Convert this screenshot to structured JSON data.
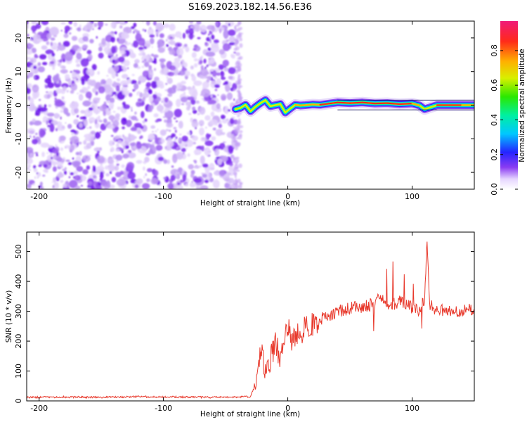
{
  "title": "S169.2023.182.14.56.E36",
  "colors": {
    "snr_line": "#e8392c",
    "noise": "#9a5cf0",
    "trace_edge": "#2020ff",
    "trace_core": "#e82020"
  },
  "colorbar": {
    "label": "Normalized spectral amplitude",
    "ticks": [
      "0.0",
      "0.2",
      "0.4",
      "0.6",
      "0.8"
    ],
    "tick_values": [
      0.0,
      0.2,
      0.4,
      0.6,
      0.8
    ],
    "range": [
      0,
      0.97
    ]
  },
  "chart_data": [
    {
      "type": "heatmap",
      "title": "S169.2023.182.14.56.E36",
      "xlabel": "Height of straight line (km)",
      "ylabel": "Frequency (Hz)",
      "xlim": [
        -210,
        150
      ],
      "ylim": [
        -25,
        25
      ],
      "xticks": [
        -200,
        -100,
        0,
        100
      ],
      "xtick_labels": [
        "-200",
        "-100",
        "0",
        "100"
      ],
      "yticks": [
        -20,
        -10,
        0,
        10,
        20
      ],
      "ytick_labels": [
        "-20",
        "-10",
        "0",
        "10",
        "20"
      ],
      "noise_region_x": [
        -210,
        -42
      ],
      "trace": {
        "x": [
          -42,
          -38,
          -34,
          -30,
          -26,
          -22,
          -18,
          -14,
          -10,
          -6,
          -2,
          2,
          6,
          10,
          14,
          20,
          26,
          32,
          40,
          50,
          60,
          70,
          80,
          90,
          100,
          106,
          110,
          120,
          130,
          140,
          150
        ],
        "freq": [
          -1.2,
          -0.8,
          0.1,
          -1.8,
          -0.5,
          0.6,
          1.5,
          -0.3,
          0.0,
          0.3,
          -2.2,
          -1.0,
          0.1,
          -0.1,
          0.0,
          0.2,
          0.1,
          0.4,
          0.8,
          0.6,
          0.8,
          0.5,
          0.6,
          0.3,
          0.5,
          -0.1,
          -1.2,
          0.0,
          0.0,
          0.0,
          0.0
        ],
        "amplitude": [
          0.35,
          0.5,
          0.6,
          0.55,
          0.6,
          0.6,
          0.55,
          0.6,
          0.65,
          0.7,
          0.65,
          0.7,
          0.75,
          0.8,
          0.8,
          0.85,
          0.8,
          0.9,
          0.95,
          0.9,
          0.9,
          0.85,
          0.9,
          0.9,
          0.85,
          0.7,
          0.5,
          0.95,
          0.9,
          0.85,
          0.8
        ]
      }
    },
    {
      "type": "line",
      "xlabel": "Height of straight line (km)",
      "ylabel": "SNR (10 * v/v)",
      "xlim": [
        -210,
        150
      ],
      "ylim": [
        0,
        565
      ],
      "xticks": [
        -200,
        -100,
        0,
        100
      ],
      "xtick_labels": [
        "-200",
        "-100",
        "0",
        "100"
      ],
      "yticks": [
        0,
        100,
        200,
        300,
        400,
        500
      ],
      "ytick_labels": [
        "0",
        "100",
        "200",
        "300",
        "400",
        "500"
      ],
      "series": [
        {
          "x": [
            -210,
            -180,
            -150,
            -120,
            -90,
            -60,
            -30,
            -26,
            -22,
            -18,
            -14,
            -10,
            -6,
            -2,
            0,
            4,
            8,
            12,
            16,
            20,
            30,
            40,
            50,
            60,
            70,
            72,
            80,
            90,
            100,
            106,
            110,
            112,
            114,
            118,
            125,
            135,
            145,
            150
          ],
          "y": [
            12,
            13,
            12,
            14,
            13,
            12,
            14,
            60,
            170,
            110,
            140,
            190,
            150,
            210,
            240,
            200,
            230,
            235,
            250,
            260,
            280,
            300,
            310,
            315,
            325,
            360,
            320,
            330,
            310,
            300,
            340,
            540,
            320,
            310,
            305,
            300,
            305,
            300
          ]
        }
      ]
    }
  ]
}
